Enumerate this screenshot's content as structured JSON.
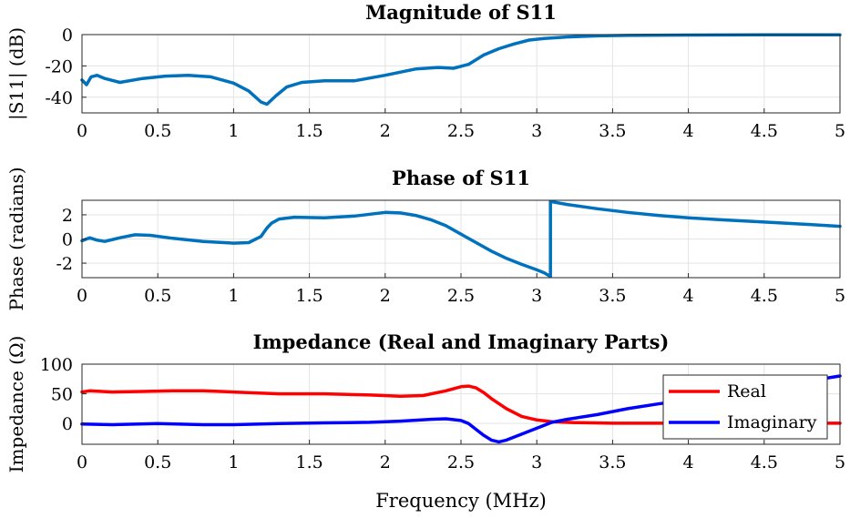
{
  "chart_data": [
    {
      "type": "line",
      "title": "Magnitude of S11",
      "ylabel": "|S11| (dB)",
      "xlabel": "",
      "xlim": [
        0,
        5
      ],
      "ylim": [
        -50,
        0
      ],
      "xticks": [
        "0",
        "0.5",
        "1",
        "1.5",
        "2",
        "2.5",
        "3",
        "3.5",
        "4",
        "4.5",
        "5"
      ],
      "yticks": [
        "0",
        "-20",
        "-40"
      ],
      "grid": true,
      "series": [
        {
          "name": "",
          "color": "#0072bd",
          "x": [
            0,
            0.03,
            0.06,
            0.1,
            0.15,
            0.25,
            0.4,
            0.55,
            0.7,
            0.85,
            1.0,
            1.1,
            1.18,
            1.22,
            1.28,
            1.35,
            1.45,
            1.6,
            1.8,
            2.0,
            2.2,
            2.35,
            2.45,
            2.55,
            2.65,
            2.75,
            2.85,
            2.95,
            3.05,
            3.2,
            3.4,
            3.6,
            4.0,
            4.5,
            5.0
          ],
          "y": [
            -29,
            -32,
            -27,
            -26,
            -28,
            -30.5,
            -28,
            -26.5,
            -26,
            -27,
            -31,
            -36,
            -43,
            -44.5,
            -39,
            -33.5,
            -30.5,
            -29.5,
            -29.5,
            -26,
            -22,
            -21,
            -21.5,
            -19,
            -13,
            -9,
            -6,
            -3.5,
            -2.5,
            -1.5,
            -0.8,
            -0.5,
            -0.3,
            -0.2,
            -0.2
          ]
        }
      ]
    },
    {
      "type": "line",
      "title": "Phase of S11",
      "ylabel": "Phase (radians)",
      "xlabel": "",
      "xlim": [
        0,
        5
      ],
      "ylim": [
        -3.2,
        3.2
      ],
      "xticks": [
        "0",
        "0.5",
        "1",
        "1.5",
        "2",
        "2.5",
        "3",
        "3.5",
        "4",
        "4.5",
        "5"
      ],
      "yticks": [
        "2",
        "0",
        "-2"
      ],
      "grid": true,
      "series": [
        {
          "name": "",
          "color": "#0072bd",
          "x": [
            0,
            0.05,
            0.1,
            0.15,
            0.25,
            0.35,
            0.45,
            0.6,
            0.8,
            1.0,
            1.1,
            1.18,
            1.22,
            1.25,
            1.3,
            1.4,
            1.6,
            1.8,
            2.0,
            2.1,
            2.2,
            2.3,
            2.4,
            2.5,
            2.6,
            2.7,
            2.8,
            2.9,
            3.0,
            3.05,
            3.09,
            3.09,
            3.2,
            3.4,
            3.6,
            3.8,
            4.0,
            4.2,
            4.5,
            4.8,
            5.0
          ],
          "y": [
            -0.15,
            0.1,
            -0.1,
            -0.2,
            0.1,
            0.35,
            0.3,
            0.05,
            -0.2,
            -0.35,
            -0.3,
            0.2,
            0.9,
            1.3,
            1.65,
            1.8,
            1.75,
            1.9,
            2.2,
            2.15,
            1.95,
            1.6,
            1.1,
            0.4,
            -0.3,
            -1.0,
            -1.6,
            -2.1,
            -2.55,
            -2.8,
            -3.1,
            3.1,
            2.85,
            2.5,
            2.2,
            1.95,
            1.75,
            1.6,
            1.4,
            1.2,
            1.05
          ]
        }
      ]
    },
    {
      "type": "line",
      "title": "Impedance (Real and Imaginary Parts)",
      "ylabel": "Impedance (Ω)",
      "xlabel": "Frequency (MHz)",
      "xlim": [
        0,
        5
      ],
      "ylim": [
        -35,
        100
      ],
      "xticks": [
        "0",
        "0.5",
        "1",
        "1.5",
        "2",
        "2.5",
        "3",
        "3.5",
        "4",
        "4.5",
        "5"
      ],
      "yticks": [
        "100",
        "50",
        "0"
      ],
      "grid": true,
      "legend": "top-right",
      "series": [
        {
          "name": "Real",
          "color": "#ff0000",
          "x": [
            0,
            0.05,
            0.2,
            0.4,
            0.6,
            0.8,
            1.0,
            1.3,
            1.6,
            1.9,
            2.1,
            2.25,
            2.4,
            2.5,
            2.55,
            2.6,
            2.65,
            2.7,
            2.8,
            2.9,
            3.0,
            3.1,
            3.25,
            3.5,
            4.0,
            4.5,
            5.0
          ],
          "y": [
            53,
            55,
            53,
            54,
            55,
            55,
            53,
            50,
            50,
            48,
            46,
            47,
            55,
            62,
            63,
            60,
            52,
            42,
            25,
            12,
            6,
            3,
            1.5,
            0.5,
            0.5,
            0.5,
            0.5
          ]
        },
        {
          "name": "Imaginary",
          "color": "#0000ff",
          "x": [
            0,
            0.2,
            0.5,
            0.8,
            1.0,
            1.3,
            1.6,
            1.9,
            2.1,
            2.3,
            2.4,
            2.5,
            2.55,
            2.6,
            2.65,
            2.7,
            2.75,
            2.8,
            2.9,
            3.0,
            3.1,
            3.2,
            3.4,
            3.6,
            3.8,
            4.0,
            4.2,
            4.5,
            4.8,
            5.0
          ],
          "y": [
            -1,
            -2,
            0,
            -2,
            -2,
            0,
            1,
            2,
            4,
            7,
            8,
            5,
            0,
            -10,
            -20,
            -28,
            -31,
            -28,
            -18,
            -8,
            2,
            7,
            15,
            25,
            33,
            40,
            47,
            59,
            72,
            80
          ]
        }
      ]
    }
  ]
}
